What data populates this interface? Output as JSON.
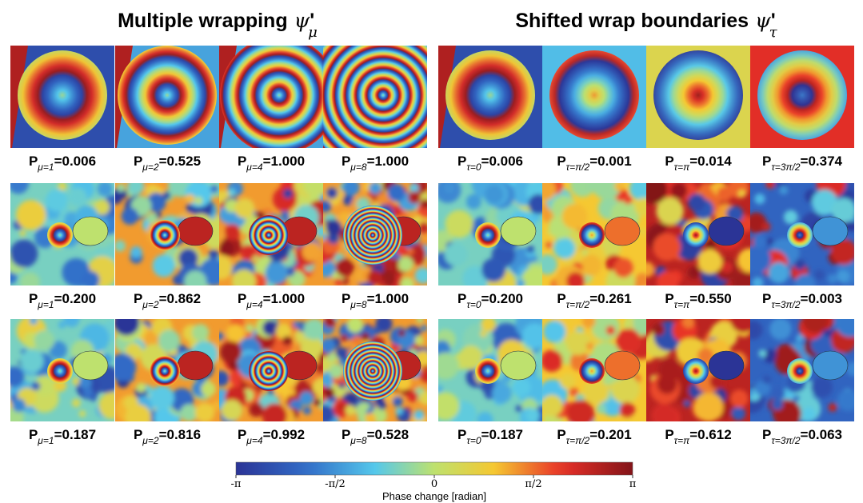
{
  "panels": [
    {
      "title": "Multiple wrapping",
      "symbol": "ψ",
      "prime": "'",
      "subscript": "μ",
      "rows": [
        [
          {
            "symbol": "P",
            "subscript": "μ=1",
            "text": "=0.006"
          },
          {
            "symbol": "P",
            "subscript": "μ=2",
            "text": "=0.525"
          },
          {
            "symbol": "P",
            "subscript": "μ=4",
            "text": "=1.000"
          },
          {
            "symbol": "P",
            "subscript": "μ=8",
            "text": "=1.000"
          }
        ],
        [
          {
            "symbol": "P",
            "subscript": "μ=1",
            "text": "=0.200"
          },
          {
            "symbol": "P",
            "subscript": "μ=2",
            "text": "=0.862"
          },
          {
            "symbol": "P",
            "subscript": "μ=4",
            "text": "=1.000"
          },
          {
            "symbol": "P",
            "subscript": "μ=8",
            "text": "=1.000"
          }
        ],
        [
          {
            "symbol": "P",
            "subscript": "μ=1",
            "text": "=0.187"
          },
          {
            "symbol": "P",
            "subscript": "μ=2",
            "text": "=0.816"
          },
          {
            "symbol": "P",
            "subscript": "μ=4",
            "text": "=0.992"
          },
          {
            "symbol": "P",
            "subscript": "μ=8",
            "text": "=0.528"
          }
        ]
      ]
    },
    {
      "title": "Shifted wrap boundaries",
      "symbol": "ψ",
      "prime": "'",
      "subscript": "τ",
      "rows": [
        [
          {
            "symbol": "P",
            "subscript": "τ=0",
            "text": "=0.006"
          },
          {
            "symbol": "P",
            "subscript": "τ=π/2",
            "text": "=0.001"
          },
          {
            "symbol": "P",
            "subscript": "τ=π",
            "text": "=0.014"
          },
          {
            "symbol": "P",
            "subscript": "τ=3π/2",
            "text": "=0.374"
          }
        ],
        [
          {
            "symbol": "P",
            "subscript": "τ=0",
            "text": "=0.200"
          },
          {
            "symbol": "P",
            "subscript": "τ=π/2",
            "text": "=0.261"
          },
          {
            "symbol": "P",
            "subscript": "τ=π",
            "text": "=0.550"
          },
          {
            "symbol": "P",
            "subscript": "τ=3π/2",
            "text": "=0.003"
          }
        ],
        [
          {
            "symbol": "P",
            "subscript": "τ=0",
            "text": "=0.187"
          },
          {
            "symbol": "P",
            "subscript": "τ=π/2",
            "text": "=0.201"
          },
          {
            "symbol": "P",
            "subscript": "τ=π",
            "text": "=0.612"
          },
          {
            "symbol": "P",
            "subscript": "τ=3π/2",
            "text": "=0.063"
          }
        ]
      ]
    }
  ],
  "colorbar": {
    "ticks": [
      "-π",
      "-π/2",
      "0",
      "π/2",
      "π"
    ],
    "label": "Phase change [radian]"
  }
}
